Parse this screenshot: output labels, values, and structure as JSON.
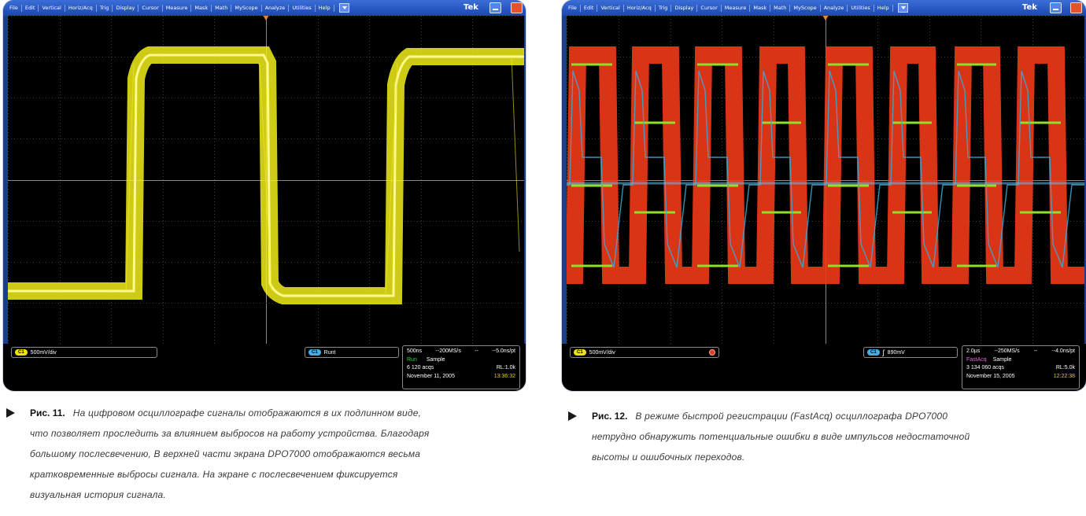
{
  "panel1": {
    "menu": [
      "File",
      "Edit",
      "Vertical",
      "Horiz/Acq",
      "Trig",
      "Display",
      "Cursor",
      "Measure",
      "Mask",
      "Math",
      "MyScope",
      "Analyze",
      "Utilities",
      "Help"
    ],
    "brand": "Tek",
    "channel_label": "C1",
    "scale": "500mV/div",
    "trigger_channel": "C1",
    "trigger_type": "Runt",
    "info": {
      "timebase": "500ns",
      "sample_rate": "--200MS/s",
      "dash": "--",
      "resolution": "--5.0ns/pt",
      "state": "Run",
      "mode": "Sample",
      "acqs": "6 120 acqs",
      "record_length": "RL:1.0k",
      "date": "November 11, 2005",
      "time": "13:36:32"
    }
  },
  "panel2": {
    "menu": [
      "File",
      "Edit",
      "Vertical",
      "Horiz/Acq",
      "Trig",
      "Display",
      "Cursor",
      "Measure",
      "Mask",
      "Math",
      "MyScope",
      "Analyze",
      "Utilities",
      "Help"
    ],
    "brand": "Tek",
    "channel_label": "C1",
    "scale": "500mV/div",
    "trigger_channel": "C1",
    "trigger_level": "890mV",
    "info": {
      "timebase": "2.0µs",
      "sample_rate": "--250MS/s",
      "dash": "--",
      "resolution": "--4.0ns/pt",
      "state": "FastAcq",
      "mode": "Sample",
      "acqs": "3 134 060 acqs",
      "record_length": "RL:5.0k",
      "date": "November 15, 2005",
      "time": "12:22:38"
    }
  },
  "caption1": {
    "lead": "Рис. 11.",
    "lines": [
      "На цифровом осциллографе сигналы отображаются в их подлинном виде,",
      "что позволяет проследить за влиянием выбросов на работу устройства. Благодаря",
      "большому послесвечению, В верхней части экрана DPO7000 отображаются весьма",
      "кратковременные выбросы сигнала. На экране с послесвечением фиксируется",
      "визуальная история сигнала."
    ]
  },
  "caption2": {
    "lead": "Рис. 12.",
    "lines": [
      "В режиме быстрой регистрации (FastAcq) осциллографа DPO7000",
      "нетрудно обнаружить потенциальные ошибки в виде импульсов недостаточной",
      "высоты и ошибочных переходов."
    ]
  },
  "colors": {
    "trace_yellow": "#f2ee1a",
    "trace_red": "#f23a1a",
    "trace_cyan": "#3aa8d8",
    "trace_green": "#8fe02a",
    "grid": "#4a4a4a"
  }
}
